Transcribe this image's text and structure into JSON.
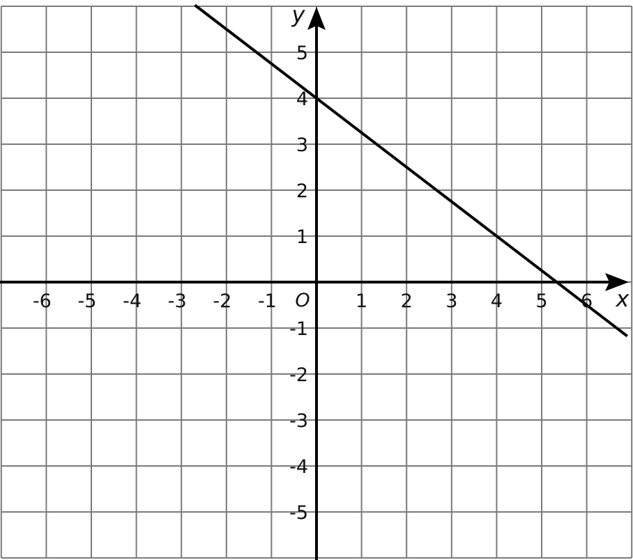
{
  "chart_data": {
    "type": "line",
    "xlabel": "x",
    "ylabel": "y",
    "origin_label": "O",
    "xlim": [
      -7,
      7
    ],
    "ylim": [
      -6,
      6
    ],
    "grid": true,
    "x_ticks": [
      "-6",
      "-5",
      "-4",
      "-3",
      "-2",
      "-1",
      "1",
      "2",
      "3",
      "4",
      "5",
      "6"
    ],
    "y_ticks": [
      "5",
      "4",
      "3",
      "2",
      "1",
      "-1",
      "-2",
      "-3",
      "-4",
      "-5"
    ],
    "series": [
      {
        "slope": -0.75,
        "intercept": 4,
        "x": [
          -2.7,
          6.9
        ],
        "y": [
          6.025,
          -1.175
        ]
      }
    ],
    "colors": {
      "grid": "#7a7a7a",
      "axis": "#000000",
      "line": "#000000"
    }
  }
}
